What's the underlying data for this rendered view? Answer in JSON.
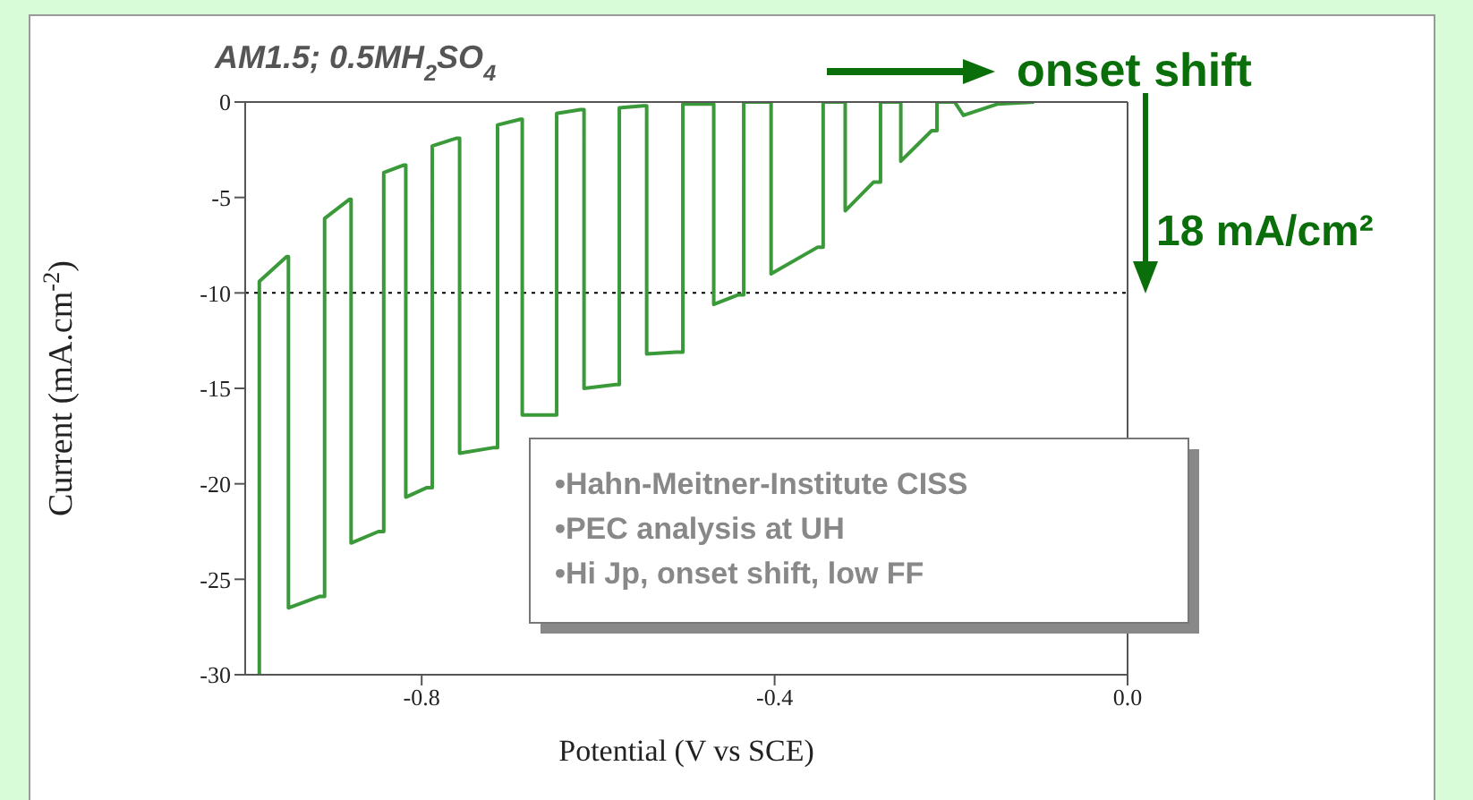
{
  "chart_data": {
    "type": "line",
    "title": "AM1.5; 0.5MH$_{2}$SO$_{4}$",
    "xlabel": "Potential (V vs SCE)",
    "ylabel": "Current (mA.cm$^{-2}$)",
    "x": [
      -0.984,
      -0.984,
      -0.953,
      -0.951,
      -0.951,
      -0.916,
      -0.91,
      -0.91,
      -0.882,
      -0.88,
      -0.88,
      -0.849,
      -0.843,
      -0.843,
      -0.82,
      -0.818,
      -0.818,
      -0.794,
      -0.788,
      -0.788,
      -0.761,
      -0.757,
      -0.757,
      -0.718,
      -0.714,
      -0.714,
      -0.688,
      -0.686,
      -0.686,
      -0.651,
      -0.647,
      -0.647,
      -0.62,
      -0.616,
      -0.616,
      -0.58,
      -0.576,
      -0.576,
      -0.549,
      -0.545,
      -0.545,
      -0.512,
      -0.504,
      -0.504,
      -0.478,
      -0.469,
      -0.469,
      -0.441,
      -0.435,
      -0.435,
      -0.41,
      -0.404,
      -0.404,
      -0.351,
      -0.345,
      -0.345,
      -0.329,
      -0.32,
      -0.32,
      -0.288,
      -0.28,
      -0.28,
      -0.263,
      -0.257,
      -0.257,
      -0.222,
      -0.216,
      -0.216,
      -0.196,
      -0.186,
      -0.147,
      -0.106
    ],
    "series": [
      {
        "color": "#3a9a3a",
        "values": [
          -30,
          -9.4,
          -8.1,
          -8.1,
          -26.5,
          -25.9,
          -25.9,
          -6.1,
          -5.1,
          -5.1,
          -23.1,
          -22.5,
          -22.5,
          -3.7,
          -3.3,
          -3.3,
          -20.7,
          -20.2,
          -20.2,
          -2.3,
          -1.9,
          -1.9,
          -18.4,
          -18.1,
          -18.1,
          -1.2,
          -0.9,
          -0.9,
          -16.4,
          -16.4,
          -16.4,
          -0.6,
          -0.4,
          -0.4,
          -15,
          -14.8,
          -14.8,
          -0.3,
          -0.2,
          -0.2,
          -13.2,
          -13.1,
          -13.1,
          -0.1,
          -0.1,
          -0.1,
          -10.6,
          -10.1,
          -10.1,
          0,
          0,
          0,
          -9,
          -7.6,
          -7.6,
          0,
          0,
          0,
          -5.7,
          -4.2,
          -4.2,
          0,
          0,
          0,
          -3.1,
          -1.5,
          -1.5,
          0,
          0,
          -0.7,
          -0.1,
          0
        ]
      }
    ],
    "xlim": [
      -1.0,
      0.0
    ],
    "xticks": [
      -0.8,
      -0.4,
      {
        "value": 0,
        "label": "0.0"
      }
    ],
    "ylim": [
      -30,
      0
    ],
    "yticks": [
      -30,
      -25,
      -20,
      -15,
      -10,
      -5,
      0
    ],
    "ref_lines": [
      {
        "axis": "y",
        "value": -10,
        "color": "#000000",
        "line_style": "dotted"
      }
    ],
    "annotations": [
      "onset shift",
      "18 mA/cm²",
      "•Hahn-Meitner-Institute CISS",
      "•PEC analysis at UH",
      "•Hi Jp, onset shift, low FF"
    ],
    "grid": false,
    "marker": "none",
    "line_style": "solid"
  }
}
